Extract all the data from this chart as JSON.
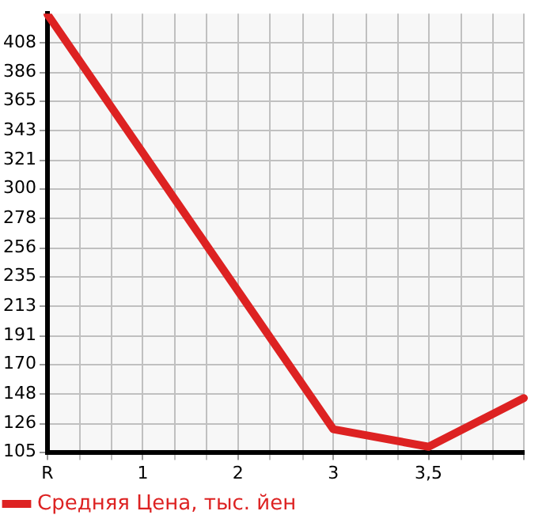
{
  "chart_data": {
    "type": "line",
    "categories": [
      "R",
      "1",
      "2",
      "3",
      "3,5",
      null
    ],
    "series": [
      {
        "name": "Средняя Цена, тыс. йен",
        "color": "#dd2222",
        "values": [
          429,
          null,
          null,
          122,
          109,
          145
        ]
      }
    ],
    "ylim": [
      105,
      429.6
    ],
    "yticks": [
      105,
      126,
      148,
      170,
      191,
      213,
      235,
      256,
      278,
      300,
      321,
      343,
      365,
      386,
      408
    ],
    "grid": true,
    "legend": "bottom left",
    "marker": "none",
    "line_style": "solid"
  }
}
